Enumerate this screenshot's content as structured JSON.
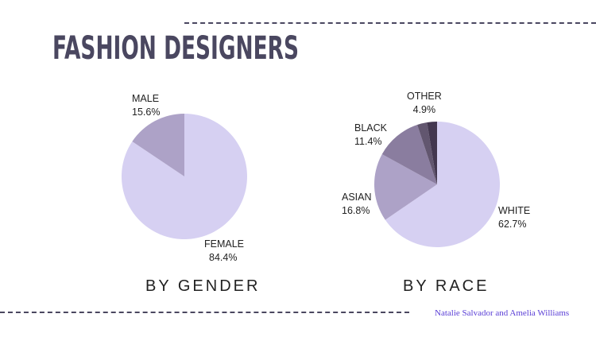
{
  "title": "FASHION DESIGNERS",
  "credit": "Natalie Salvador and Amelia Williams",
  "colors": {
    "heading": "#4a4760",
    "credit": "#5a3fd6",
    "female": "#d6d0f2",
    "male": "#ada2c7",
    "white": "#d6d0f2",
    "asian": "#ada2c7",
    "black": "#8a7d9f",
    "other_mid": "#62566f",
    "other_dark": "#43374f"
  },
  "chart_data": [
    {
      "type": "pie",
      "title": "BY GENDER",
      "slices": [
        {
          "label": "FEMALE",
          "value": 84.4,
          "value_label": "84.4%"
        },
        {
          "label": "MALE",
          "value": 15.6,
          "value_label": "15.6%"
        }
      ]
    },
    {
      "type": "pie",
      "title": "BY RACE",
      "slices": [
        {
          "label": "WHITE",
          "value": 62.7,
          "value_label": "62.7%"
        },
        {
          "label": "ASIAN",
          "value": 16.8,
          "value_label": "16.8%"
        },
        {
          "label": "BLACK",
          "value": 11.4,
          "value_label": "11.4%"
        },
        {
          "label": "OTHER",
          "value": 4.9,
          "value_label": "4.9%",
          "segments": [
            2.45,
            2.45
          ]
        }
      ]
    }
  ]
}
